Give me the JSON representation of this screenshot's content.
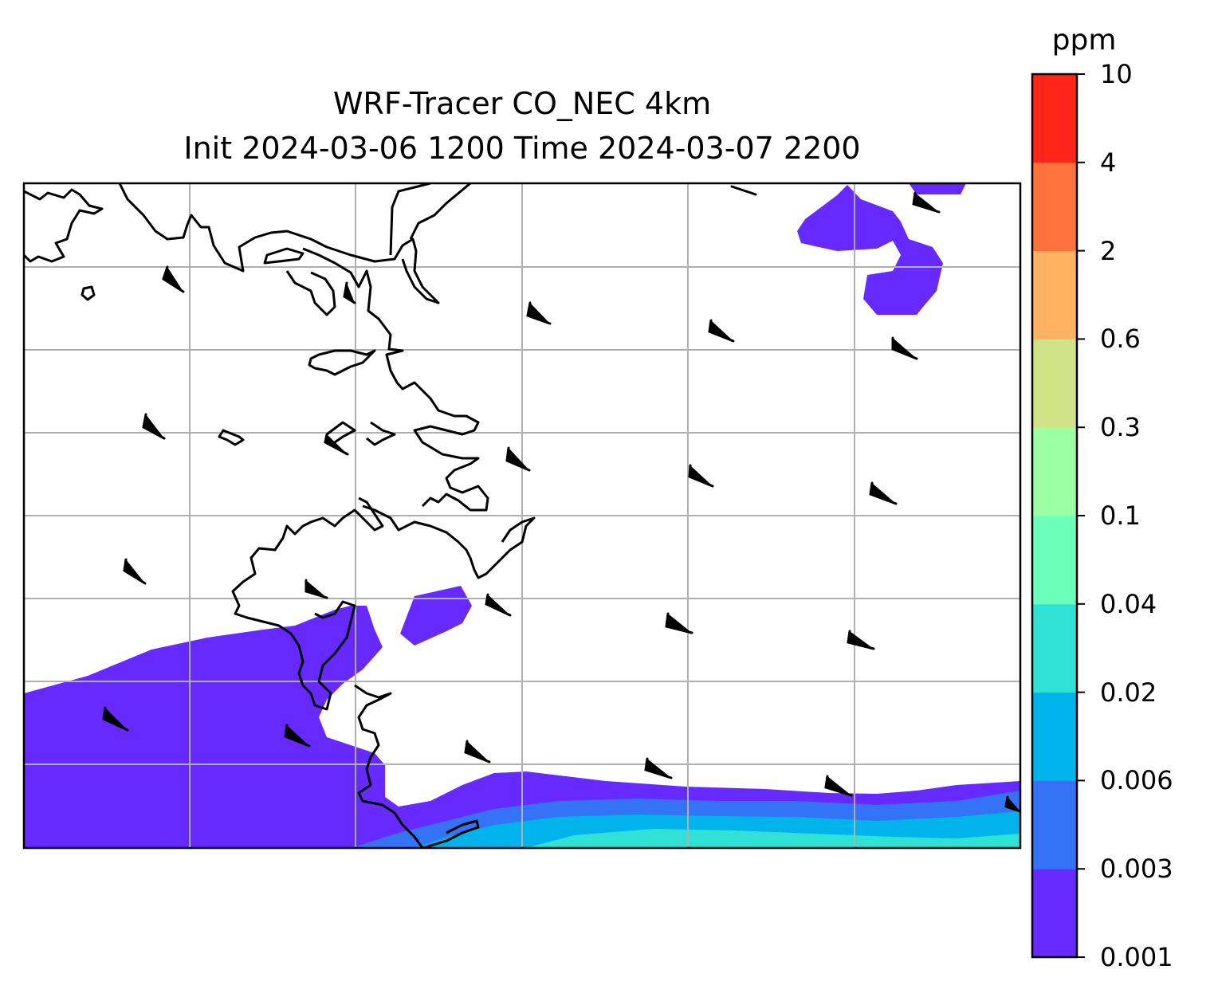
{
  "title": {
    "line1": "WRF-Tracer CO_NEC 4km",
    "line2": "Init 2024-03-06 1200 Time 2024-03-07 2200"
  },
  "colorbar": {
    "unit": "ppm",
    "levels": [
      "0.001",
      "0.003",
      "0.006",
      "0.02",
      "0.04",
      "0.1",
      "0.3",
      "0.6",
      "2",
      "4",
      "10"
    ],
    "colors": [
      "#6629ff",
      "#3473f6",
      "#00b3eb",
      "#30e1d6",
      "#6bffbc",
      "#9cffa2",
      "#d1e186",
      "#ffb362",
      "#ff723e",
      "#ff2619"
    ]
  },
  "map": {
    "gridlines": true,
    "features": [
      "coastline",
      "wind-barbs",
      "filled-contours"
    ]
  }
}
